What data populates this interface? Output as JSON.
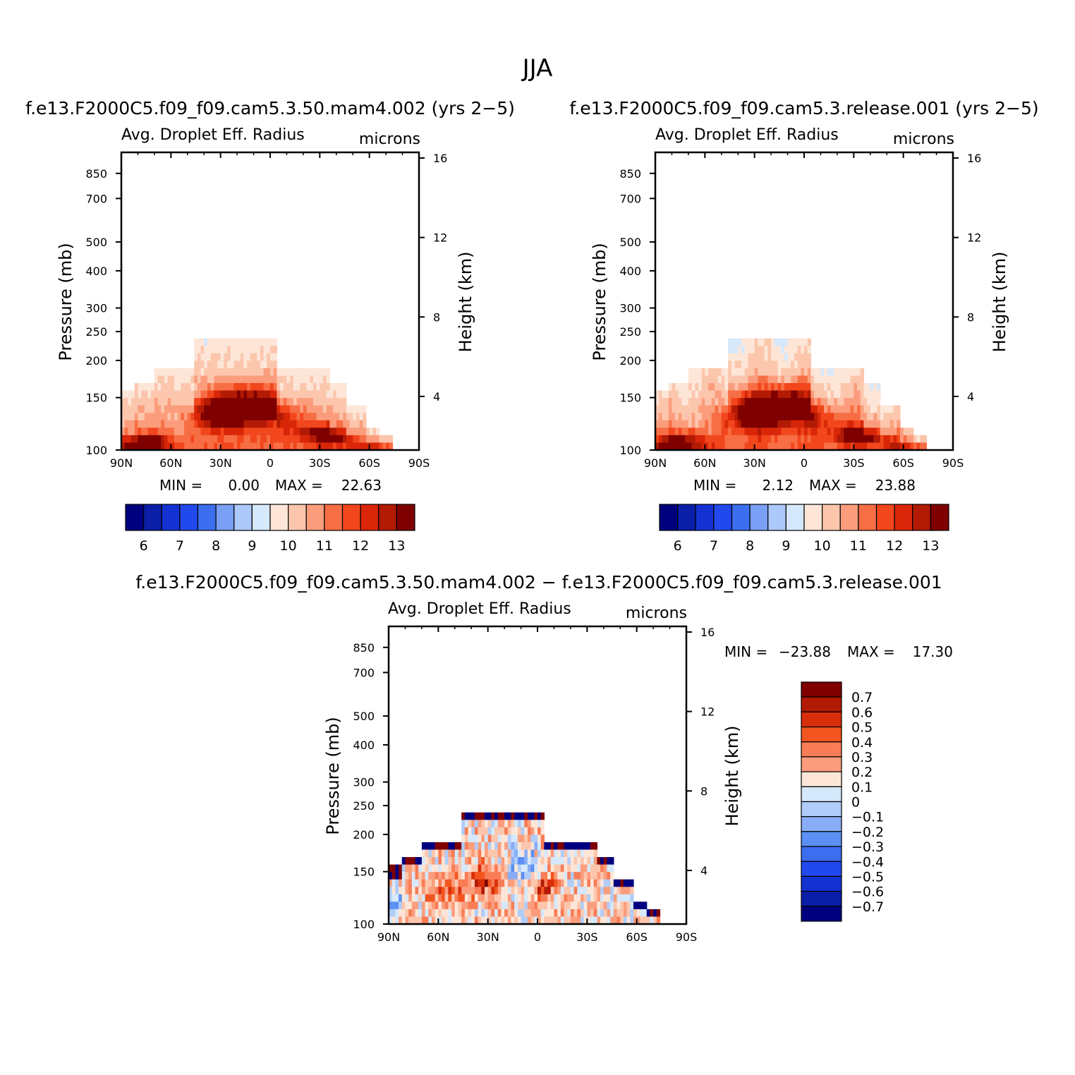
{
  "figure": {
    "title": "JJA"
  },
  "colors": {
    "abs_palette": [
      "#00007f",
      "#0a1ea8",
      "#1432d2",
      "#2149ee",
      "#3c6ef0",
      "#7aa0f5",
      "#adc8fa",
      "#d6e8fb",
      "#fde6d8",
      "#fcc6ad",
      "#fb9d7c",
      "#f86e44",
      "#f2461c",
      "#d92608",
      "#b21a04",
      "#7f0000"
    ],
    "diff_palette": [
      "#00007f",
      "#0a1ea8",
      "#1432d2",
      "#2149ee",
      "#3c6ef0",
      "#5b8ff3",
      "#88adf6",
      "#b0ccf9",
      "#d6e8fb",
      "#fde6d8",
      "#fcc6ad",
      "#fb9d7c",
      "#f87c55",
      "#f2551f",
      "#d92e0a",
      "#b21a04",
      "#7f0000"
    ]
  },
  "chart_data": [
    {
      "id": "mam4",
      "type": "heatmap",
      "title": "f.e13.F2000C5.f09_f09.cam5.3.50.mam4.002 (yrs 2−5)",
      "variable": "Avg. Droplet Eff. Radius",
      "units": "microns",
      "xlabel": "",
      "ylabel": "Pressure (mb)",
      "y2label": "Height (km)",
      "x_ticks": [
        "90N",
        "60N",
        "30N",
        "0",
        "30S",
        "60S",
        "90S"
      ],
      "y_ticks": [
        "100",
        "150",
        "200",
        "250",
        "300",
        "400",
        "500",
        "700",
        "850"
      ],
      "y_tick_values": [
        100,
        150,
        200,
        250,
        300,
        400,
        500,
        700,
        850
      ],
      "y2_ticks": [
        "16",
        "12",
        "8",
        "4"
      ],
      "y2_tick_values": [
        16,
        12,
        8,
        4
      ],
      "xlim": [
        90,
        -90
      ],
      "ylim": [
        1000,
        100
      ],
      "min_label": "MIN =",
      "min_value": "0.00",
      "max_label": "MAX =",
      "max_value": "22.63",
      "colorbar": {
        "labels": [
          "6",
          "7",
          "8",
          "9",
          "10",
          "11",
          "12",
          "13"
        ],
        "levels": [
          5.5,
          6,
          6.5,
          7,
          7.5,
          8,
          8.5,
          9,
          9.5,
          10,
          10.5,
          11,
          11.5,
          12,
          12.5,
          13,
          13.5
        ]
      }
    },
    {
      "id": "release",
      "type": "heatmap",
      "title": "f.e13.F2000C5.f09_f09.cam5.3.release.001 (yrs 2−5)",
      "variable": "Avg. Droplet Eff. Radius",
      "units": "microns",
      "xlabel": "",
      "ylabel": "Pressure (mb)",
      "y2label": "Height (km)",
      "x_ticks": [
        "90N",
        "60N",
        "30N",
        "0",
        "30S",
        "60S",
        "90S"
      ],
      "y_ticks": [
        "100",
        "150",
        "200",
        "250",
        "300",
        "400",
        "500",
        "700",
        "850"
      ],
      "y_tick_values": [
        100,
        150,
        200,
        250,
        300,
        400,
        500,
        700,
        850
      ],
      "y2_ticks": [
        "16",
        "12",
        "8",
        "4"
      ],
      "y2_tick_values": [
        16,
        12,
        8,
        4
      ],
      "xlim": [
        90,
        -90
      ],
      "ylim": [
        1000,
        100
      ],
      "min_label": "MIN =",
      "min_value": "2.12",
      "max_label": "MAX =",
      "max_value": "23.88",
      "colorbar": {
        "labels": [
          "6",
          "7",
          "8",
          "9",
          "10",
          "11",
          "12",
          "13"
        ],
        "levels": [
          5.5,
          6,
          6.5,
          7,
          7.5,
          8,
          8.5,
          9,
          9.5,
          10,
          10.5,
          11,
          11.5,
          12,
          12.5,
          13,
          13.5
        ]
      }
    },
    {
      "id": "diff",
      "type": "heatmap",
      "title": "f.e13.F2000C5.f09_f09.cam5.3.50.mam4.002 − f.e13.F2000C5.f09_f09.cam5.3.release.001",
      "variable": "Avg. Droplet Eff. Radius",
      "units": "microns",
      "xlabel": "",
      "ylabel": "Pressure (mb)",
      "y2label": "Height (km)",
      "x_ticks": [
        "90N",
        "60N",
        "30N",
        "0",
        "30S",
        "60S",
        "90S"
      ],
      "y_ticks": [
        "100",
        "150",
        "200",
        "250",
        "300",
        "400",
        "500",
        "700",
        "850"
      ],
      "y_tick_values": [
        100,
        150,
        200,
        250,
        300,
        400,
        500,
        700,
        850
      ],
      "y2_ticks": [
        "16",
        "12",
        "8",
        "4"
      ],
      "y2_tick_values": [
        16,
        12,
        8,
        4
      ],
      "xlim": [
        90,
        -90
      ],
      "ylim": [
        1000,
        100
      ],
      "min_label": "MIN =",
      "min_value": "−23.88",
      "max_label": "MAX =",
      "max_value": "17.30",
      "colorbar": {
        "labels": [
          "0.7",
          "0.6",
          "0.5",
          "0.4",
          "0.3",
          "0.2",
          "0.1",
          "0",
          "−0.1",
          "−0.2",
          "−0.3",
          "−0.4",
          "−0.5",
          "−0.6",
          "−0.7"
        ]
      }
    }
  ]
}
